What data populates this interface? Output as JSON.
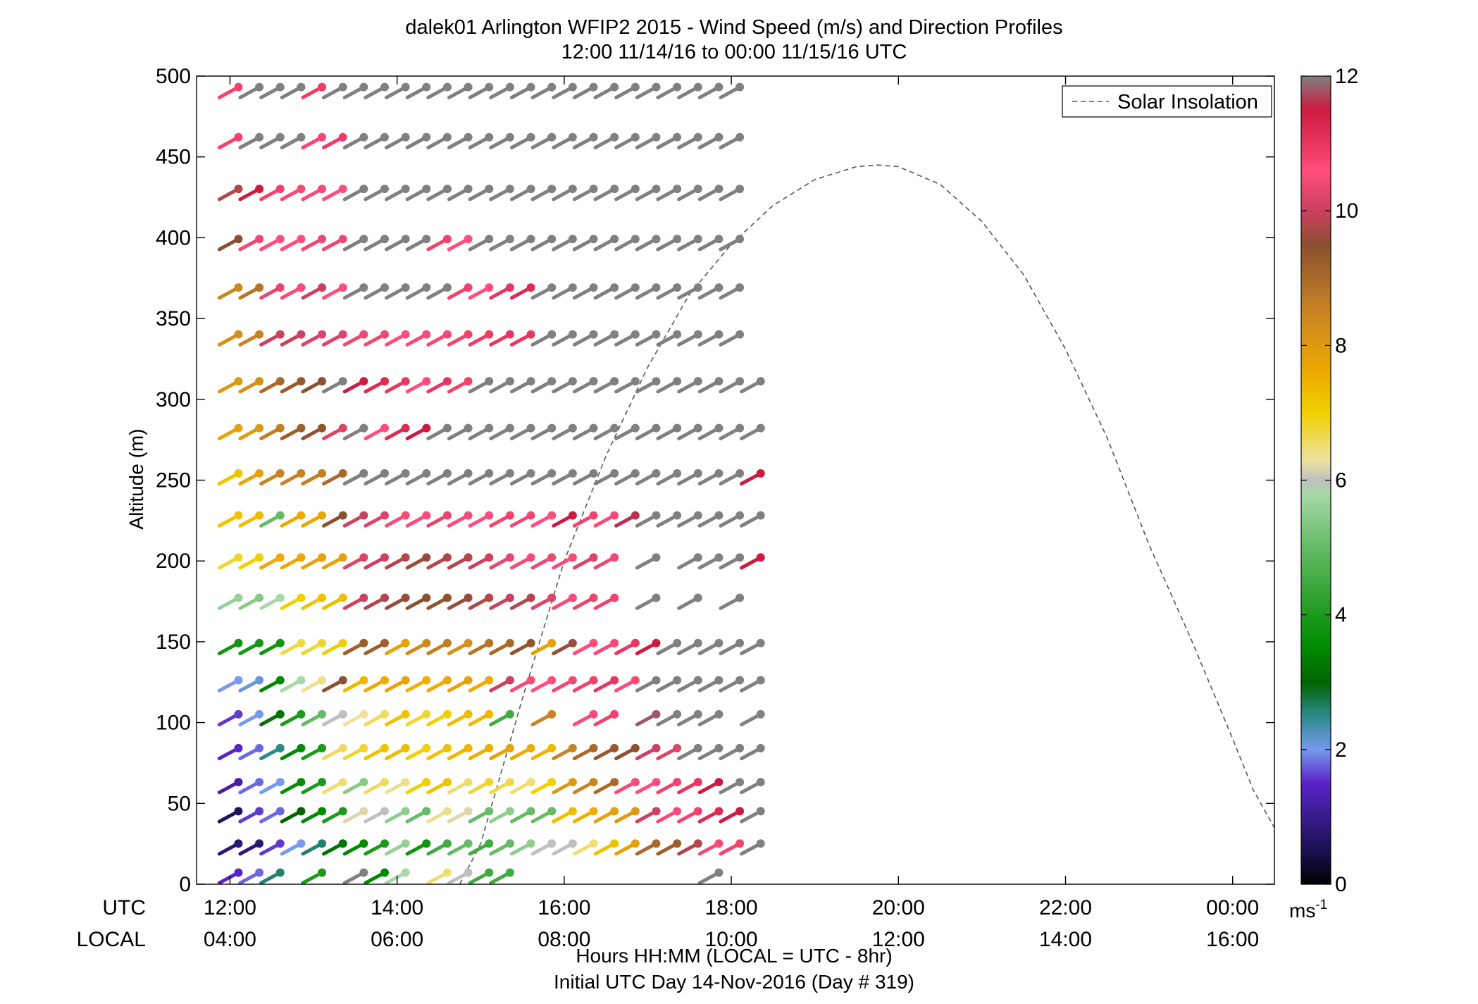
{
  "chart_data": {
    "type": "wind-barb-profile",
    "title": "dalek01 Arlington WFIP2 2015 - Wind Speed (m/s) and Direction Profiles",
    "subtitle": "12:00 11/14/16 to 00:00 11/15/16  UTC",
    "ylabel": "Altitude (m)",
    "xlabel": "Hours HH:MM  (LOCAL = UTC - 8hr)",
    "xlabel2": "Initial UTC Day 14-Nov-2016 (Day # 319)",
    "row_label_utc": "UTC",
    "row_label_local": "LOCAL",
    "xlim_hours": [
      11.6,
      24.5
    ],
    "ylim": [
      0,
      500
    ],
    "yticks": [
      0,
      50,
      100,
      150,
      200,
      250,
      300,
      350,
      400,
      450,
      500
    ],
    "ytick_labels": [
      "0",
      "50",
      "100",
      "150",
      "200",
      "250",
      "300",
      "350",
      "400",
      "450",
      "500"
    ],
    "xticks_hours": [
      12,
      14,
      16,
      18,
      20,
      22,
      24
    ],
    "xtick_labels_utc": [
      "12:00",
      "14:00",
      "16:00",
      "18:00",
      "20:00",
      "22:00",
      "00:00"
    ],
    "xtick_labels_local": [
      "04:00",
      "06:00",
      "08:00",
      "10:00",
      "12:00",
      "14:00",
      "16:00"
    ],
    "legend": {
      "label": "Solar Insolation",
      "position": "top-right"
    },
    "colorbar": {
      "min": 0,
      "max": 12,
      "ticks": [
        0,
        2,
        4,
        6,
        8,
        10,
        12
      ],
      "tick_labels": [
        "0",
        "2",
        "4",
        "6",
        "8",
        "10",
        "12"
      ],
      "unit_label": "ms",
      "unit_exponent": "-1",
      "stops": [
        [
          0.0,
          "#000000"
        ],
        [
          0.5,
          "#1a1050"
        ],
        [
          1.0,
          "#3a1c8c"
        ],
        [
          1.5,
          "#5a22c8"
        ],
        [
          2.0,
          "#7799ee"
        ],
        [
          2.5,
          "#2a8a8a"
        ],
        [
          3.0,
          "#006400"
        ],
        [
          3.5,
          "#008a00"
        ],
        [
          4.0,
          "#1c9a1c"
        ],
        [
          5.0,
          "#66bb66"
        ],
        [
          5.8,
          "#a8d8a8"
        ],
        [
          6.0,
          "#c0c0c0"
        ],
        [
          6.3,
          "#eee2a0"
        ],
        [
          7.0,
          "#f0d000"
        ],
        [
          7.6,
          "#eeaa00"
        ],
        [
          8.5,
          "#c88422"
        ],
        [
          9.5,
          "#8a5030"
        ],
        [
          10.0,
          "#cc4060"
        ],
        [
          10.6,
          "#ff4d7d"
        ],
        [
          11.5,
          "#cc1a40"
        ],
        [
          12.0,
          "#808080"
        ]
      ]
    },
    "solar_insolation_curve": {
      "description_units": "altitude-axis units",
      "x_hours": [
        14.75,
        15.0,
        15.5,
        16.0,
        16.5,
        17.0,
        17.5,
        18.0,
        18.5,
        19.0,
        19.5,
        19.75,
        20.0,
        20.5,
        21.0,
        21.5,
        22.0,
        22.5,
        23.0,
        23.5,
        24.0,
        24.25,
        24.5
      ],
      "y": [
        0,
        25,
        115,
        200,
        265,
        320,
        365,
        396,
        420,
        436,
        444,
        445,
        444,
        433,
        410,
        377,
        331,
        276,
        210,
        152,
        90,
        58,
        35
      ]
    },
    "altitude_levels": [
      5,
      23,
      43,
      61,
      82,
      103,
      124,
      147,
      175,
      200,
      226,
      252,
      280,
      309,
      338,
      367,
      397,
      428,
      460,
      491
    ],
    "time_hours": [
      12.0,
      12.25,
      12.5,
      12.75,
      13.0,
      13.25,
      13.5,
      13.75,
      14.0,
      14.25,
      14.5,
      14.75,
      15.0,
      15.25,
      15.5,
      15.75,
      16.0,
      16.25,
      16.5,
      16.75,
      17.0,
      17.25,
      17.5,
      17.75,
      18.0,
      18.25
    ],
    "barb_direction_deg": 245,
    "speed_matrix_ms": [
      [
        1.5,
        1.8,
        2.6,
        null,
        4.0,
        null,
        12.0,
        3.5,
        5.8,
        null,
        6.5,
        6.0,
        4.5,
        4.5,
        null,
        null,
        null,
        null,
        null,
        null,
        null,
        null,
        null,
        12.0,
        null,
        null
      ],
      [
        0.8,
        0.8,
        1.6,
        2.0,
        2.6,
        3.2,
        3.5,
        4.0,
        5.6,
        3.8,
        4.5,
        5.0,
        4.5,
        5.0,
        5.5,
        6.0,
        6.0,
        6.5,
        7.2,
        7.8,
        9.0,
        9.2,
        9.8,
        10.5,
        10.8,
        12.0
      ],
      [
        0.6,
        1.6,
        1.8,
        3.0,
        3.5,
        4.0,
        6.2,
        6.0,
        5.5,
        5.0,
        6.4,
        6.2,
        5.0,
        5.5,
        5.0,
        5.0,
        7.3,
        7.5,
        7.8,
        8.0,
        10.0,
        10.5,
        10.8,
        11.2,
        11.5,
        12.0
      ],
      [
        1.2,
        1.8,
        2.0,
        3.6,
        4.0,
        6.5,
        5.4,
        6.6,
        6.4,
        7.0,
        7.2,
        6.5,
        6.8,
        6.7,
        6.5,
        7.0,
        8.0,
        8.5,
        9.0,
        10.5,
        10.6,
        10.8,
        11.0,
        11.5,
        12.0,
        12.0
      ],
      [
        1.5,
        1.8,
        2.5,
        3.5,
        4.0,
        6.6,
        6.8,
        7.2,
        7.3,
        7.0,
        7.2,
        7.4,
        7.5,
        7.8,
        7.6,
        7.4,
        8.5,
        9.0,
        9.3,
        9.5,
        10.0,
        10.2,
        12.0,
        12.0,
        12.0,
        12.0
      ],
      [
        1.6,
        2.0,
        3.2,
        4.0,
        5.0,
        6.0,
        6.3,
        6.6,
        7.2,
        6.8,
        7.0,
        7.3,
        7.4,
        4.5,
        null,
        8.5,
        null,
        10.5,
        10.8,
        null,
        11.8,
        12.0,
        12.0,
        12.0,
        null,
        12.0
      ],
      [
        2.0,
        2.1,
        3.5,
        5.8,
        6.4,
        9.5,
        7.4,
        7.6,
        7.8,
        7.5,
        7.6,
        7.8,
        7.6,
        10.0,
        10.5,
        10.6,
        10.4,
        10.8,
        11.0,
        10.5,
        12.0,
        12.0,
        12.0,
        12.0,
        12.0,
        12.0
      ],
      [
        3.8,
        3.9,
        3.8,
        6.7,
        6.8,
        7.0,
        9.2,
        9.2,
        7.8,
        8.3,
        8.6,
        8.2,
        8.8,
        9.0,
        9.4,
        7.8,
        9.6,
        10.6,
        10.7,
        11.0,
        11.5,
        12.0,
        12.0,
        12.0,
        12.0,
        12.0
      ],
      [
        5.6,
        5.4,
        5.8,
        7.0,
        7.2,
        7.3,
        10.0,
        9.8,
        9.6,
        9.5,
        9.4,
        9.6,
        9.8,
        10.0,
        9.8,
        10.2,
        10.5,
        10.3,
        10.8,
        null,
        12.0,
        null,
        12.0,
        null,
        12.0,
        null
      ],
      [
        6.8,
        7.0,
        7.6,
        7.7,
        7.8,
        7.8,
        10.2,
        10.0,
        9.8,
        9.6,
        9.8,
        9.8,
        10.0,
        10.3,
        10.5,
        10.4,
        10.5,
        10.2,
        10.4,
        null,
        12.0,
        null,
        12.0,
        12.0,
        12.0,
        11.5
      ],
      [
        7.2,
        7.3,
        5.0,
        7.6,
        7.7,
        9.5,
        10.0,
        10.2,
        10.5,
        10.6,
        10.3,
        10.5,
        10.6,
        10.8,
        10.4,
        10.6,
        11.5,
        10.8,
        10.5,
        11.6,
        12.0,
        12.0,
        12.0,
        12.0,
        12.0,
        12.0
      ],
      [
        7.2,
        7.8,
        8.5,
        8.5,
        8.6,
        9.0,
        12.0,
        12.0,
        12.0,
        12.0,
        12.0,
        12.0,
        12.0,
        12.0,
        12.0,
        12.0,
        12.0,
        12.0,
        12.0,
        12.0,
        12.0,
        12.0,
        12.0,
        12.0,
        12.0,
        11.5
      ],
      [
        7.8,
        8.0,
        8.6,
        9.2,
        9.4,
        10.2,
        12.0,
        10.6,
        11.2,
        11.5,
        12.0,
        12.0,
        12.0,
        12.0,
        12.0,
        12.0,
        12.0,
        12.0,
        12.0,
        12.0,
        12.0,
        12.0,
        12.0,
        12.0,
        12.0,
        12.0
      ],
      [
        8.0,
        8.2,
        9.0,
        9.3,
        9.5,
        12.0,
        11.5,
        11.2,
        11.0,
        10.6,
        11.0,
        10.8,
        12.0,
        12.0,
        12.0,
        12.0,
        12.0,
        12.0,
        12.0,
        12.0,
        12.0,
        12.0,
        12.0,
        12.0,
        12.0,
        12.0
      ],
      [
        8.2,
        8.5,
        10.0,
        10.0,
        10.2,
        10.2,
        10.4,
        10.4,
        10.6,
        10.5,
        10.7,
        10.8,
        10.9,
        11.0,
        11.0,
        12.0,
        12.0,
        12.0,
        12.0,
        12.0,
        12.0,
        12.0,
        12.0,
        12.0,
        12.0,
        null
      ],
      [
        8.4,
        8.8,
        10.3,
        10.5,
        10.0,
        10.6,
        12.0,
        12.0,
        12.0,
        12.0,
        12.0,
        10.8,
        10.6,
        11.0,
        11.2,
        12.0,
        12.0,
        12.0,
        12.0,
        12.0,
        12.0,
        12.0,
        12.0,
        12.0,
        12.0,
        null
      ],
      [
        9.5,
        10.4,
        10.6,
        10.6,
        10.4,
        10.4,
        12.0,
        12.0,
        12.0,
        12.0,
        10.8,
        10.6,
        12.0,
        12.0,
        12.0,
        12.0,
        12.0,
        12.0,
        12.0,
        12.0,
        12.0,
        12.0,
        12.0,
        12.0,
        12.0,
        null
      ],
      [
        9.8,
        11.5,
        10.8,
        10.7,
        10.5,
        10.6,
        12.0,
        12.0,
        12.0,
        12.0,
        12.0,
        12.0,
        12.0,
        12.0,
        12.0,
        12.0,
        12.0,
        12.0,
        12.0,
        12.0,
        12.0,
        12.0,
        12.0,
        12.0,
        12.0,
        null
      ],
      [
        10.8,
        12.0,
        12.0,
        12.0,
        10.7,
        10.9,
        12.0,
        12.0,
        12.0,
        12.0,
        12.0,
        12.0,
        12.0,
        12.0,
        12.0,
        12.0,
        12.0,
        12.0,
        12.0,
        12.0,
        12.0,
        12.0,
        12.0,
        12.0,
        12.0,
        null
      ],
      [
        10.8,
        12.0,
        12.0,
        12.0,
        10.9,
        12.0,
        12.0,
        12.0,
        12.0,
        12.0,
        12.0,
        12.0,
        12.0,
        12.0,
        12.0,
        12.0,
        12.0,
        12.0,
        12.0,
        12.0,
        12.0,
        12.0,
        12.0,
        12.0,
        12.0,
        null
      ]
    ]
  }
}
